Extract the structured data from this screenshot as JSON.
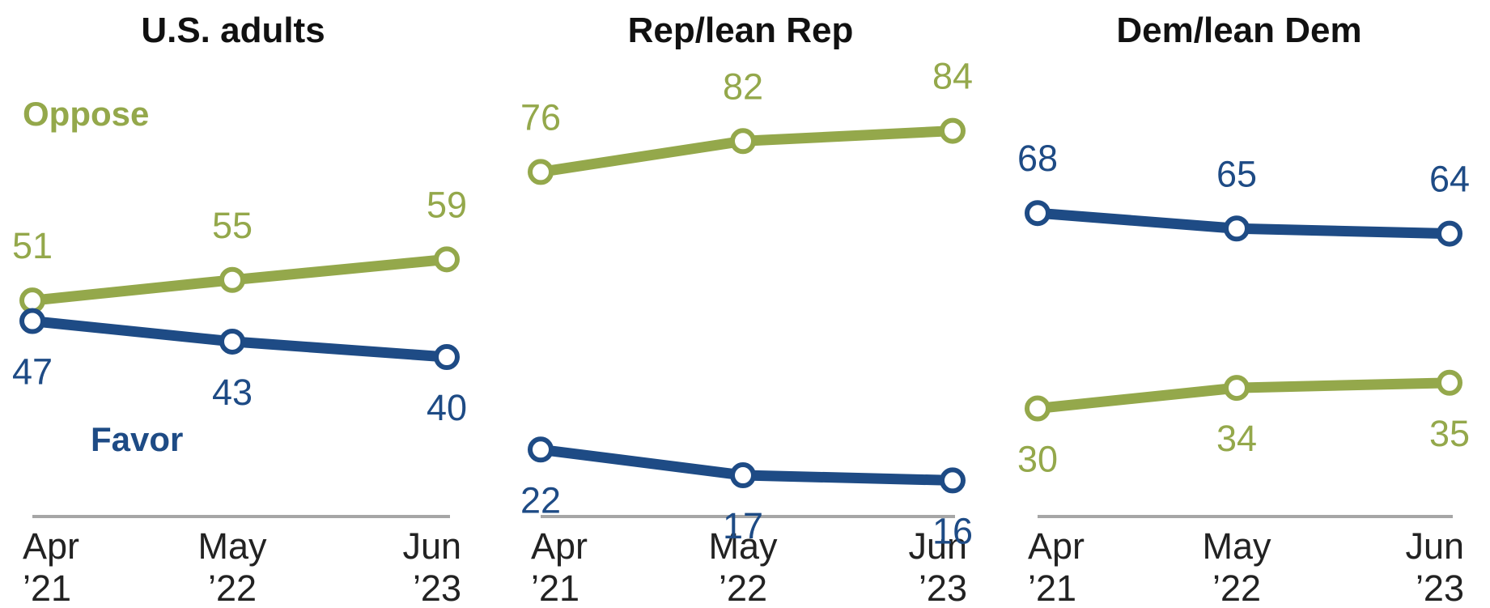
{
  "chart_data": [
    {
      "type": "line",
      "title": "U.S. adults",
      "categories": [
        "Apr '21",
        "May '22",
        "Jun '23"
      ],
      "x_ticks": [
        [
          "Apr",
          "’21"
        ],
        [
          "May",
          "’22"
        ],
        [
          "Jun",
          "’23"
        ]
      ],
      "ylim": [
        0,
        100
      ],
      "series": [
        {
          "name": "Oppose",
          "values": [
            51,
            55,
            59
          ],
          "color": "#94a84b"
        },
        {
          "name": "Favor",
          "values": [
            47,
            43,
            40
          ],
          "color": "#1e4b85"
        }
      ]
    },
    {
      "type": "line",
      "title": "Rep/lean Rep",
      "categories": [
        "Apr '21",
        "May '22",
        "Jun '23"
      ],
      "x_ticks": [
        [
          "Apr",
          "’21"
        ],
        [
          "May",
          "’22"
        ],
        [
          "Jun",
          "’23"
        ]
      ],
      "ylim": [
        0,
        100
      ],
      "series": [
        {
          "name": "Oppose",
          "values": [
            76,
            82,
            84
          ],
          "color": "#94a84b"
        },
        {
          "name": "Favor",
          "values": [
            22,
            17,
            16
          ],
          "color": "#1e4b85"
        }
      ]
    },
    {
      "type": "line",
      "title": "Dem/lean Dem",
      "categories": [
        "Apr '21",
        "May '22",
        "Jun '23"
      ],
      "x_ticks": [
        [
          "Apr",
          "’21"
        ],
        [
          "May",
          "’22"
        ],
        [
          "Jun",
          "’23"
        ]
      ],
      "ylim": [
        0,
        100
      ],
      "series": [
        {
          "name": "Favor",
          "values": [
            68,
            65,
            64
          ],
          "color": "#1e4b85"
        },
        {
          "name": "Oppose",
          "values": [
            30,
            34,
            35
          ],
          "color": "#94a84b"
        }
      ]
    }
  ],
  "legend_labels": {
    "oppose": "Oppose",
    "favor": "Favor"
  },
  "colors": {
    "oppose": "#94a84b",
    "favor": "#1e4b85",
    "axis": "#a6a6a6"
  }
}
